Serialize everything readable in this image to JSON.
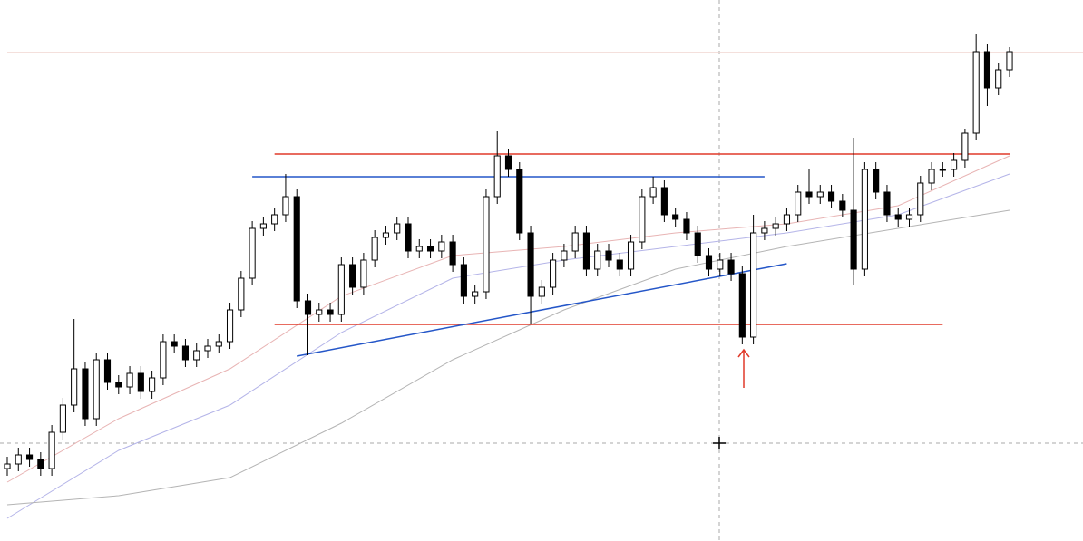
{
  "chart_data": {
    "type": "candlestick",
    "up_color": "#ffffff",
    "down_color": "#000000",
    "wick_color": "#000000",
    "xlim": [
      0,
      90
    ],
    "ylim": [
      0,
      597
    ],
    "open": [
      80,
      85,
      95,
      90,
      80,
      120,
      150,
      190,
      135,
      200,
      175,
      170,
      185,
      165,
      180,
      220,
      215,
      200,
      210,
      215,
      220,
      255,
      290,
      345,
      350,
      360,
      380,
      265,
      250,
      255,
      250,
      305,
      280,
      310,
      335,
      340,
      350,
      320,
      325,
      320,
      330,
      305,
      270,
      275,
      380,
      425,
      410,
      340,
      270,
      280,
      310,
      320,
      340,
      300,
      320,
      310,
      300,
      330,
      380,
      390,
      360,
      355,
      340,
      315,
      300,
      310,
      295,
      225,
      340,
      345,
      350,
      360,
      385,
      380,
      385,
      375,
      365,
      300,
      410,
      385,
      360,
      355,
      360,
      395,
      410,
      410,
      420,
      450,
      540,
      500,
      520
    ],
    "high": [
      93,
      103,
      103,
      98,
      128,
      158,
      245,
      198,
      208,
      208,
      183,
      193,
      193,
      188,
      228,
      228,
      223,
      218,
      223,
      228,
      263,
      298,
      353,
      358,
      368,
      405,
      388,
      273,
      263,
      263,
      313,
      313,
      318,
      343,
      348,
      358,
      358,
      333,
      333,
      338,
      338,
      313,
      283,
      388,
      452,
      433,
      418,
      348,
      288,
      318,
      328,
      348,
      348,
      328,
      328,
      318,
      338,
      388,
      402,
      398,
      368,
      363,
      348,
      323,
      318,
      318,
      303,
      360,
      353,
      358,
      368,
      393,
      410,
      393,
      393,
      383,
      445,
      418,
      418,
      393,
      368,
      368,
      403,
      418,
      418,
      428,
      455,
      560,
      548,
      528,
      545
    ],
    "low": [
      72,
      77,
      82,
      72,
      72,
      112,
      142,
      127,
      127,
      167,
      162,
      162,
      157,
      157,
      172,
      207,
      192,
      192,
      202,
      207,
      212,
      247,
      282,
      337,
      342,
      352,
      257,
      205,
      242,
      242,
      242,
      272,
      272,
      302,
      327,
      332,
      312,
      312,
      312,
      312,
      297,
      262,
      262,
      267,
      372,
      402,
      332,
      240,
      262,
      272,
      302,
      312,
      292,
      292,
      302,
      292,
      292,
      322,
      372,
      352,
      347,
      332,
      307,
      292,
      292,
      287,
      217,
      217,
      332,
      337,
      342,
      352,
      372,
      372,
      367,
      357,
      282,
      292,
      377,
      352,
      347,
      347,
      352,
      387,
      402,
      402,
      412,
      442,
      480,
      492,
      512
    ],
    "close": [
      85,
      95,
      90,
      80,
      120,
      150,
      190,
      135,
      200,
      175,
      170,
      185,
      165,
      180,
      220,
      215,
      200,
      210,
      215,
      220,
      255,
      290,
      345,
      350,
      360,
      380,
      265,
      250,
      255,
      250,
      305,
      280,
      310,
      335,
      340,
      350,
      320,
      325,
      320,
      330,
      305,
      270,
      275,
      380,
      425,
      410,
      340,
      270,
      280,
      310,
      320,
      340,
      300,
      320,
      310,
      300,
      330,
      380,
      390,
      360,
      355,
      340,
      315,
      300,
      310,
      295,
      225,
      340,
      345,
      350,
      360,
      385,
      380,
      385,
      375,
      365,
      300,
      410,
      385,
      360,
      355,
      360,
      395,
      410,
      410,
      420,
      450,
      540,
      500,
      520,
      540
    ],
    "series": [
      {
        "color": "#e8b4b4",
        "x": [
          0,
          10,
          20,
          30,
          40,
          50,
          60,
          70,
          80,
          90
        ],
        "values": [
          65,
          135,
          190,
          270,
          315,
          325,
          340,
          350,
          370,
          425
        ]
      },
      {
        "color": "#b4b4e8",
        "x": [
          0,
          10,
          20,
          30,
          40,
          50,
          60,
          70,
          80,
          90
        ],
        "values": [
          25,
          100,
          150,
          230,
          290,
          310,
          325,
          340,
          360,
          405
        ]
      },
      {
        "color": "#b4b4b4",
        "x": [
          0,
          10,
          20,
          30,
          40,
          50,
          60,
          70,
          80,
          90
        ],
        "values": [
          40,
          50,
          70,
          130,
          200,
          255,
          300,
          325,
          345,
          365
        ]
      }
    ],
    "levels": [
      {
        "value": 427,
        "color": "#e03a2a",
        "from": 24,
        "to": 90
      },
      {
        "value": 402,
        "color": "#2456c8",
        "from": 22,
        "to": 68
      },
      {
        "value": 239,
        "color": "#e03a2a",
        "from": 24,
        "to": 84
      },
      {
        "value": 539,
        "color": "#f0d6d0",
        "from": 0,
        "to": 97
      }
    ],
    "trendlines": [
      {
        "color": "#2456c8",
        "x": [
          26,
          70
        ],
        "values": [
          204,
          306
        ]
      }
    ]
  }
}
